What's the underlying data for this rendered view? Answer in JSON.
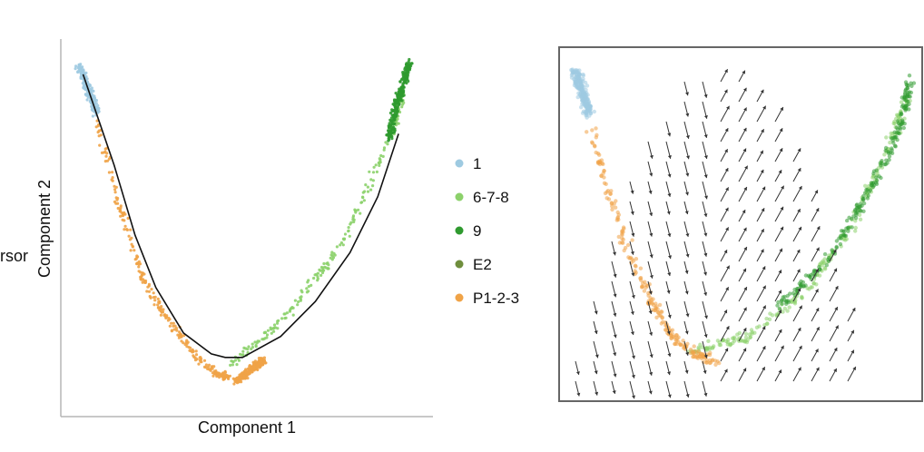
{
  "partial_text": "rsor",
  "chart_data": [
    {
      "type": "scatter",
      "xlabel": "Component 1",
      "ylabel": "Component 2",
      "xlim": [
        0,
        100
      ],
      "ylim": [
        0,
        100
      ],
      "grid": false,
      "legend_placement": "right",
      "series": [
        {
          "name": "1",
          "color": "#9ecae1",
          "segments": [
            [
              [
                2,
                95
              ],
              [
                7,
                82
              ]
            ]
          ]
        },
        {
          "name": "6-7-8",
          "color": "#8cd16b",
          "segments": [
            [
              [
                46,
                10
              ],
              [
                62,
                24
              ],
              [
                78,
                45
              ],
              [
                92,
                76
              ],
              [
                95,
                88
              ]
            ]
          ]
        },
        {
          "name": "9",
          "color": "#2f9a2f",
          "segments": [
            [
              [
                91,
                74
              ],
              [
                94,
                86
              ],
              [
                97,
                96
              ]
            ]
          ]
        },
        {
          "name": "E2",
          "color": "#6f8e3d",
          "segments": []
        },
        {
          "name": "P1-2-3",
          "color": "#f0a347",
          "segments": [
            [
              [
                7,
                80
              ],
              [
                13,
                57
              ],
              [
                20,
                35
              ],
              [
                28,
                22
              ],
              [
                36,
                12
              ],
              [
                42,
                7
              ],
              [
                45,
                6
              ]
            ],
            [
              [
                47,
                5
              ],
              [
                52,
                9
              ],
              [
                55,
                11
              ]
            ]
          ]
        }
      ],
      "trajectory": [
        [
          3,
          93
        ],
        [
          12,
          67
        ],
        [
          18,
          47
        ],
        [
          24,
          32
        ],
        [
          32,
          19
        ],
        [
          40,
          13
        ],
        [
          44,
          12
        ],
        [
          49,
          12
        ],
        [
          60,
          18
        ],
        [
          70,
          28
        ],
        [
          80,
          42
        ],
        [
          88,
          58
        ],
        [
          94,
          76
        ]
      ]
    },
    {
      "type": "scatter",
      "xlim": [
        0,
        100
      ],
      "ylim": [
        0,
        100
      ],
      "grid": false,
      "overlay": "velocity arrows",
      "series": [
        {
          "name": "1",
          "color": "#9ecae1",
          "segments": [
            [
              [
                3,
                95
              ],
              [
                7,
                82
              ]
            ]
          ]
        },
        {
          "name": "6-7-8",
          "color": "#8cd16b",
          "segments": [
            [
              [
                36,
                13
              ],
              [
                52,
                17
              ],
              [
                68,
                30
              ],
              [
                82,
                50
              ],
              [
                93,
                75
              ],
              [
                97,
                86
              ]
            ]
          ]
        },
        {
          "name": "9",
          "color": "#2f9a2f",
          "segments": [
            [
              [
                60,
                25
              ],
              [
                75,
                40
              ],
              [
                88,
                62
              ],
              [
                96,
                80
              ],
              [
                98,
                92
              ]
            ]
          ]
        },
        {
          "name": "P1-2-3",
          "color": "#f0a347",
          "segments": [
            [
              [
                7,
                78
              ],
              [
                13,
                58
              ],
              [
                19,
                40
              ],
              [
                25,
                27
              ],
              [
                31,
                17
              ],
              [
                37,
                12
              ],
              [
                43,
                10
              ]
            ]
          ]
        }
      ]
    }
  ]
}
